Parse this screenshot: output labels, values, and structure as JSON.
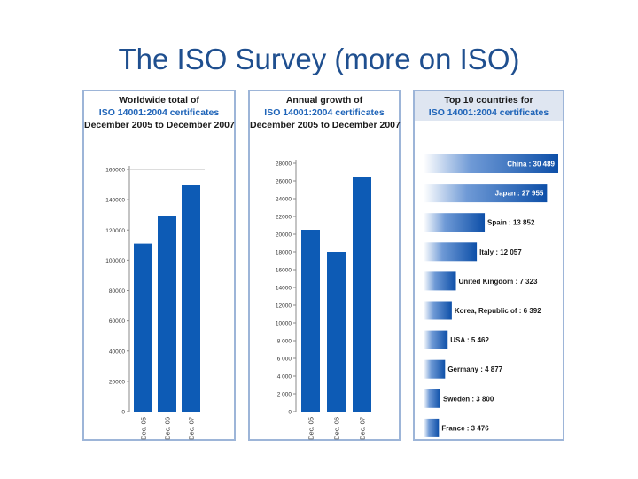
{
  "slide": {
    "title": "The ISO Survey (more on ISO)"
  },
  "colors": {
    "bar": "#0d5bb5",
    "bar_light": "#ffffff",
    "title": "#1f4f8f",
    "panel_border": "#9db5d8",
    "header_band": "#dfe6f1"
  },
  "chart_data": [
    {
      "type": "bar",
      "title_lines": [
        "Worldwide total of",
        "ISO 14001:2004 certificates",
        "December 2005 to December 2007"
      ],
      "categories": [
        "Dec. 05",
        "Dec. 06",
        "Dec. 07"
      ],
      "values": [
        111000,
        129000,
        150000
      ],
      "yticks": [
        "0",
        "20000",
        "40000",
        "60000",
        "80000",
        "100000",
        "120000",
        "140000",
        "160000"
      ],
      "ylim": [
        0,
        160000
      ],
      "grid": false,
      "xlabel": "",
      "ylabel": ""
    },
    {
      "type": "bar",
      "title_lines": [
        "Annual growth of",
        "ISO 14001:2004 certificates",
        "December 2005 to December 2007"
      ],
      "categories": [
        "Dec. 05",
        "Dec. 06",
        "Dec. 07"
      ],
      "values": [
        20500,
        18000,
        26400
      ],
      "yticks": [
        "0",
        "2 000",
        "4 000",
        "6 000",
        "8 000",
        "10000",
        "12000",
        "14000",
        "16000",
        "18000",
        "20000",
        "22000",
        "24000",
        "26000",
        "28000"
      ],
      "ylim": [
        0,
        28000
      ],
      "grid": false,
      "xlabel": "",
      "ylabel": ""
    },
    {
      "type": "bar",
      "orientation": "horizontal",
      "title_lines": [
        "Top 10 countries for",
        "ISO 14001:2004 certificates"
      ],
      "categories": [
        "China",
        "Japan",
        "Spain",
        "Italy",
        "United Kingdom",
        "Korea, Republic of",
        "USA",
        "Germany",
        "Sweden",
        "France"
      ],
      "labels": [
        "China : 30 489",
        "Japan : 27 955",
        "Spain : 13 852",
        "Italy : 12 057",
        "United Kingdom : 7 323",
        "Korea, Republic of : 6 392",
        "USA : 5 462",
        "Germany : 4 877",
        "Sweden : 3 800",
        "France : 3 476"
      ],
      "values": [
        30489,
        27955,
        13852,
        12057,
        7323,
        6392,
        5462,
        4877,
        3800,
        3476
      ],
      "grid": false
    }
  ]
}
